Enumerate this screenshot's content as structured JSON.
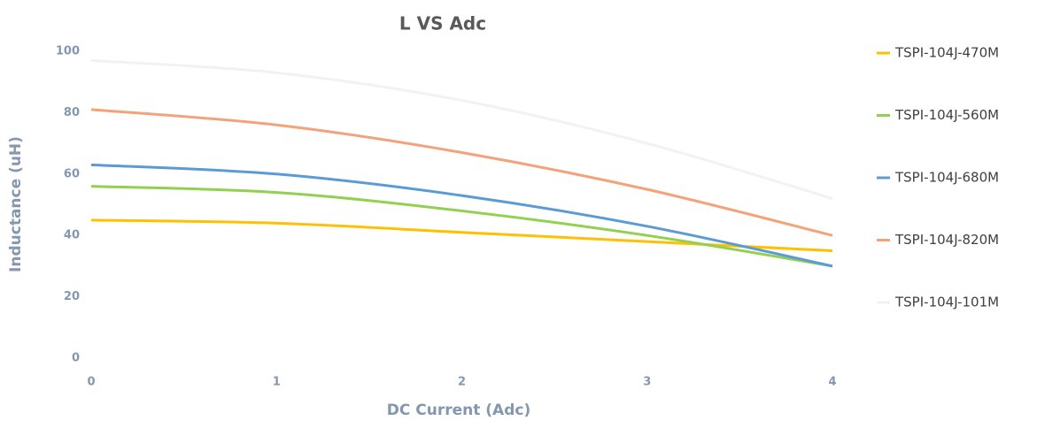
{
  "chart_data": {
    "type": "line",
    "title": "L VS Adc",
    "x_label": "DC Current (Adc)",
    "y_label": "Inductance (uH)",
    "x": [
      0,
      1,
      2,
      3,
      4
    ],
    "series": [
      {
        "name": "TSPI-104J-470M",
        "color": "#ffc000",
        "values": [
          45,
          44,
          41,
          38,
          35
        ]
      },
      {
        "name": "TSPI-104J-560M",
        "color": "#92d050",
        "values": [
          56,
          54,
          48,
          40,
          30
        ]
      },
      {
        "name": "TSPI-104J-680M",
        "color": "#5b9bd5",
        "values": [
          63,
          60,
          53,
          43,
          30
        ]
      },
      {
        "name": "TSPI-104J-820M",
        "color": "#f4a27a",
        "values": [
          81,
          76,
          67,
          55,
          40
        ]
      },
      {
        "name": "TSPI-104J-101M",
        "color": "#f2f2f2",
        "values": [
          97,
          93,
          84,
          70,
          52
        ]
      }
    ],
    "xlim": [
      0,
      4
    ],
    "xticks": [
      0,
      1,
      2,
      3,
      4
    ],
    "ylim": [
      0,
      100
    ],
    "yticks": [
      0,
      20,
      40,
      60,
      80,
      100
    ],
    "grid": false,
    "legend": "right"
  }
}
